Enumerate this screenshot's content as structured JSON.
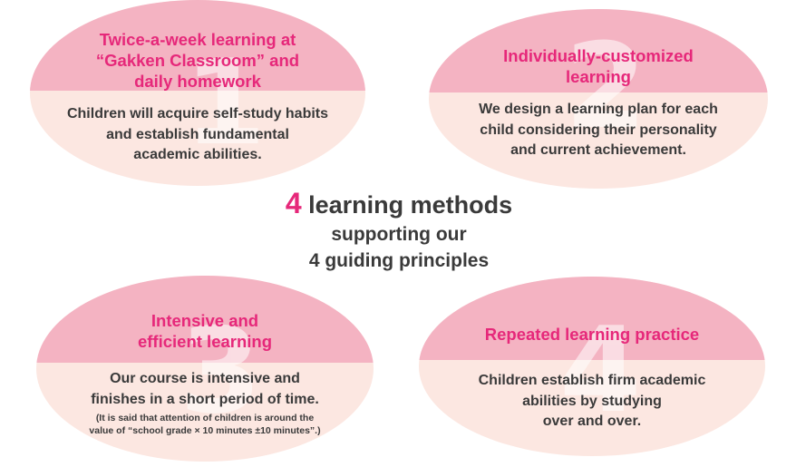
{
  "methods": [
    {
      "number": "1",
      "title": "Twice-a-week learning at\n“Gakken Classroom” and\ndaily homework",
      "body": "Children will acquire self-study habits\nand establish fundamental\nacademic abilities."
    },
    {
      "number": "2",
      "title": "Individually-customized\nlearning",
      "body": "We design a learning plan for each\nchild  considering their  personality\nand current achievement."
    },
    {
      "number": "3",
      "title": "Intensive and\nefficient learning",
      "body": "Our course is intensive and\nfinishes in a short period of time.",
      "note": "(It is said that attention of children is around the\nvalue of “school grade × 10 minutes ±10 minutes”.)"
    },
    {
      "number": "4",
      "title": "Repeated learning practice",
      "body": "Children establish firm academic\nabilities by studying\nover and over."
    }
  ],
  "center": {
    "highlight_number": "4",
    "line1": "learning methods",
    "line2": "supporting our",
    "line3": "4 guiding principles"
  },
  "colors": {
    "title_pink": "#e6287a",
    "oval_top": "#f4b3c2",
    "oval_bottom": "#fce7e1",
    "text": "#3a3a3a"
  }
}
